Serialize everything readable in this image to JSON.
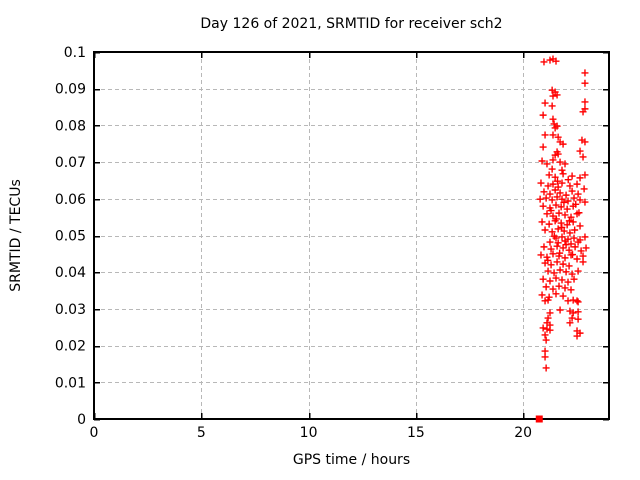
{
  "figure": {
    "background": "#ffffff",
    "text_color": "#000000"
  },
  "chart_data": {
    "type": "scatter",
    "title": "Day 126 of 2021, SRMTID for receiver sch2",
    "xlabel": "GPS time / hours",
    "ylabel": "SRMTID / TECUs",
    "xlim": [
      0,
      24
    ],
    "ylim": [
      0,
      0.1
    ],
    "xticks": {
      "values": [
        0,
        5,
        10,
        15,
        20
      ],
      "labels": [
        "0",
        "5",
        "10",
        "15",
        "20"
      ]
    },
    "yticks": {
      "values": [
        0,
        0.01,
        0.02,
        0.03,
        0.04,
        0.05,
        0.06,
        0.07,
        0.08,
        0.09,
        0.1
      ],
      "labels": [
        "0",
        "0.01",
        "0.02",
        "0.03",
        "0.04",
        "0.05",
        "0.06",
        "0.07",
        "0.08",
        "0.09",
        "0.1"
      ]
    },
    "grid": true,
    "legend": "none",
    "grid_color": "#b8b8b8",
    "axis_color": "#000000",
    "series": [
      {
        "name": "SRMTID",
        "marker": "plus",
        "color": "#ff0000",
        "points": [
          [
            20.97,
            0.0973
          ],
          [
            21.25,
            0.0978
          ],
          [
            21.39,
            0.0981
          ],
          [
            21.53,
            0.0975
          ],
          [
            22.88,
            0.0943
          ],
          [
            22.88,
            0.0915
          ],
          [
            21.35,
            0.0896
          ],
          [
            21.49,
            0.0891
          ],
          [
            21.58,
            0.0883
          ],
          [
            21.39,
            0.088
          ],
          [
            21.02,
            0.0861
          ],
          [
            21.35,
            0.0853
          ],
          [
            22.88,
            0.0864
          ],
          [
            22.88,
            0.0845
          ],
          [
            20.93,
            0.0828
          ],
          [
            21.39,
            0.0817
          ],
          [
            22.79,
            0.0837
          ],
          [
            21.44,
            0.0804
          ],
          [
            21.58,
            0.0798
          ],
          [
            21.49,
            0.0793
          ],
          [
            21.02,
            0.0774
          ],
          [
            21.39,
            0.0774
          ],
          [
            21.63,
            0.0768
          ],
          [
            21.72,
            0.0755
          ],
          [
            21.86,
            0.0749
          ],
          [
            22.74,
            0.076
          ],
          [
            22.88,
            0.0755
          ],
          [
            20.93,
            0.0741
          ],
          [
            21.58,
            0.0728
          ],
          [
            21.63,
            0.0722
          ],
          [
            21.49,
            0.0719
          ],
          [
            22.65,
            0.073
          ],
          [
            22.79,
            0.0714
          ],
          [
            20.88,
            0.0703
          ],
          [
            21.11,
            0.0695
          ],
          [
            21.39,
            0.0706
          ],
          [
            21.72,
            0.07
          ],
          [
            21.95,
            0.0695
          ],
          [
            21.35,
            0.0681
          ],
          [
            21.81,
            0.0678
          ],
          [
            21.21,
            0.0665
          ],
          [
            21.49,
            0.0659
          ],
          [
            21.86,
            0.0668
          ],
          [
            22.28,
            0.0662
          ],
          [
            22.65,
            0.0657
          ],
          [
            22.88,
            0.0665
          ],
          [
            20.83,
            0.0643
          ],
          [
            21.16,
            0.0635
          ],
          [
            21.39,
            0.064
          ],
          [
            21.63,
            0.0632
          ],
          [
            21.81,
            0.0643
          ],
          [
            22.18,
            0.0635
          ],
          [
            22.51,
            0.064
          ],
          [
            22.84,
            0.0627
          ],
          [
            20.97,
            0.0619
          ],
          [
            21.25,
            0.0613
          ],
          [
            21.49,
            0.0624
          ],
          [
            21.72,
            0.0616
          ],
          [
            22.0,
            0.061
          ],
          [
            22.28,
            0.0621
          ],
          [
            22.56,
            0.0613
          ],
          [
            20.79,
            0.0599
          ],
          [
            21.07,
            0.0602
          ],
          [
            21.35,
            0.0597
          ],
          [
            21.58,
            0.0605
          ],
          [
            21.81,
            0.0599
          ],
          [
            22.09,
            0.0594
          ],
          [
            22.37,
            0.0602
          ],
          [
            22.65,
            0.0597
          ],
          [
            22.88,
            0.0591
          ],
          [
            20.93,
            0.058
          ],
          [
            21.25,
            0.0575
          ],
          [
            21.53,
            0.0583
          ],
          [
            21.77,
            0.0578
          ],
          [
            22.05,
            0.0572
          ],
          [
            22.33,
            0.058
          ],
          [
            21.11,
            0.0559
          ],
          [
            21.39,
            0.0553
          ],
          [
            21.67,
            0.0561
          ],
          [
            21.95,
            0.0556
          ],
          [
            22.23,
            0.055
          ],
          [
            22.51,
            0.0559
          ],
          [
            20.88,
            0.0537
          ],
          [
            21.21,
            0.0531
          ],
          [
            21.49,
            0.054
          ],
          [
            21.77,
            0.0534
          ],
          [
            22.05,
            0.0529
          ],
          [
            22.33,
            0.0537
          ],
          [
            22.65,
            0.0526
          ],
          [
            21.02,
            0.0515
          ],
          [
            21.35,
            0.051
          ],
          [
            21.63,
            0.0518
          ],
          [
            21.91,
            0.0512
          ],
          [
            22.18,
            0.0507
          ],
          [
            21.53,
            0.0493
          ],
          [
            21.81,
            0.0496
          ],
          [
            22.09,
            0.049
          ],
          [
            22.37,
            0.0493
          ],
          [
            22.65,
            0.0488
          ],
          [
            22.88,
            0.0496
          ],
          [
            21.25,
            0.0482
          ],
          [
            21.63,
            0.048
          ],
          [
            21.95,
            0.0485
          ],
          [
            22.23,
            0.0477
          ],
          [
            22.56,
            0.0482
          ],
          [
            20.97,
            0.0469
          ],
          [
            21.3,
            0.0463
          ],
          [
            21.58,
            0.0471
          ],
          [
            21.86,
            0.0466
          ],
          [
            22.14,
            0.046
          ],
          [
            22.42,
            0.0469
          ],
          [
            22.7,
            0.0458
          ],
          [
            22.93,
            0.0466
          ],
          [
            20.83,
            0.0447
          ],
          [
            21.11,
            0.0441
          ],
          [
            21.39,
            0.045
          ],
          [
            21.67,
            0.0444
          ],
          [
            21.95,
            0.0439
          ],
          [
            22.23,
            0.0447
          ],
          [
            22.51,
            0.0436
          ],
          [
            22.79,
            0.0444
          ],
          [
            21.02,
            0.0425
          ],
          [
            21.3,
            0.042
          ],
          [
            21.58,
            0.0428
          ],
          [
            21.86,
            0.0422
          ],
          [
            22.14,
            0.0417
          ],
          [
            22.79,
            0.0428
          ],
          [
            21.16,
            0.0403
          ],
          [
            21.44,
            0.0398
          ],
          [
            21.72,
            0.0406
          ],
          [
            22.0,
            0.0401
          ],
          [
            22.28,
            0.0395
          ],
          [
            22.56,
            0.0403
          ],
          [
            20.93,
            0.0381
          ],
          [
            21.25,
            0.0376
          ],
          [
            21.53,
            0.0384
          ],
          [
            21.81,
            0.0379
          ],
          [
            22.09,
            0.0373
          ],
          [
            22.37,
            0.0381
          ],
          [
            21.07,
            0.036
          ],
          [
            21.39,
            0.0354
          ],
          [
            21.67,
            0.0362
          ],
          [
            21.95,
            0.0357
          ],
          [
            22.23,
            0.0352
          ],
          [
            20.88,
            0.0338
          ],
          [
            21.21,
            0.0332
          ],
          [
            21.53,
            0.0341
          ],
          [
            21.86,
            0.0335
          ],
          [
            21.02,
            0.0322
          ],
          [
            21.16,
            0.0324
          ],
          [
            22.09,
            0.0322
          ],
          [
            22.33,
            0.0324
          ],
          [
            22.51,
            0.0322
          ],
          [
            22.56,
            0.0319
          ],
          [
            21.72,
            0.0297
          ],
          [
            21.25,
            0.0289
          ],
          [
            22.18,
            0.0294
          ],
          [
            22.33,
            0.0289
          ],
          [
            22.56,
            0.0292
          ],
          [
            21.16,
            0.0275
          ],
          [
            22.28,
            0.0275
          ],
          [
            22.56,
            0.0272
          ],
          [
            21.11,
            0.0262
          ],
          [
            21.25,
            0.0256
          ],
          [
            22.18,
            0.0262
          ],
          [
            20.93,
            0.0248
          ],
          [
            21.11,
            0.0245
          ],
          [
            21.25,
            0.0242
          ],
          [
            22.51,
            0.024
          ],
          [
            22.65,
            0.0234
          ],
          [
            21.02,
            0.0229
          ],
          [
            22.51,
            0.0226
          ],
          [
            21.07,
            0.0215
          ],
          [
            21.02,
            0.0185
          ],
          [
            21.02,
            0.0169
          ],
          [
            21.07,
            0.0139
          ],
          [
            21.6,
            0.0648
          ],
          [
            22.1,
            0.0652
          ],
          [
            21.9,
            0.059
          ],
          [
            22.45,
            0.0585
          ],
          [
            21.3,
            0.0568
          ],
          [
            22.6,
            0.0562
          ],
          [
            21.55,
            0.0545
          ],
          [
            22.15,
            0.054
          ],
          [
            21.8,
            0.0522
          ],
          [
            22.4,
            0.0515
          ],
          [
            21.45,
            0.0498
          ],
          [
            22.0,
            0.0475
          ],
          [
            21.7,
            0.0452
          ],
          [
            22.3,
            0.0448
          ],
          [
            21.15,
            0.0432
          ]
        ]
      },
      {
        "name": "zero-marker",
        "marker": "filled-square",
        "color": "#ff0000",
        "points": [
          [
            20.75,
            0
          ]
        ]
      }
    ]
  }
}
